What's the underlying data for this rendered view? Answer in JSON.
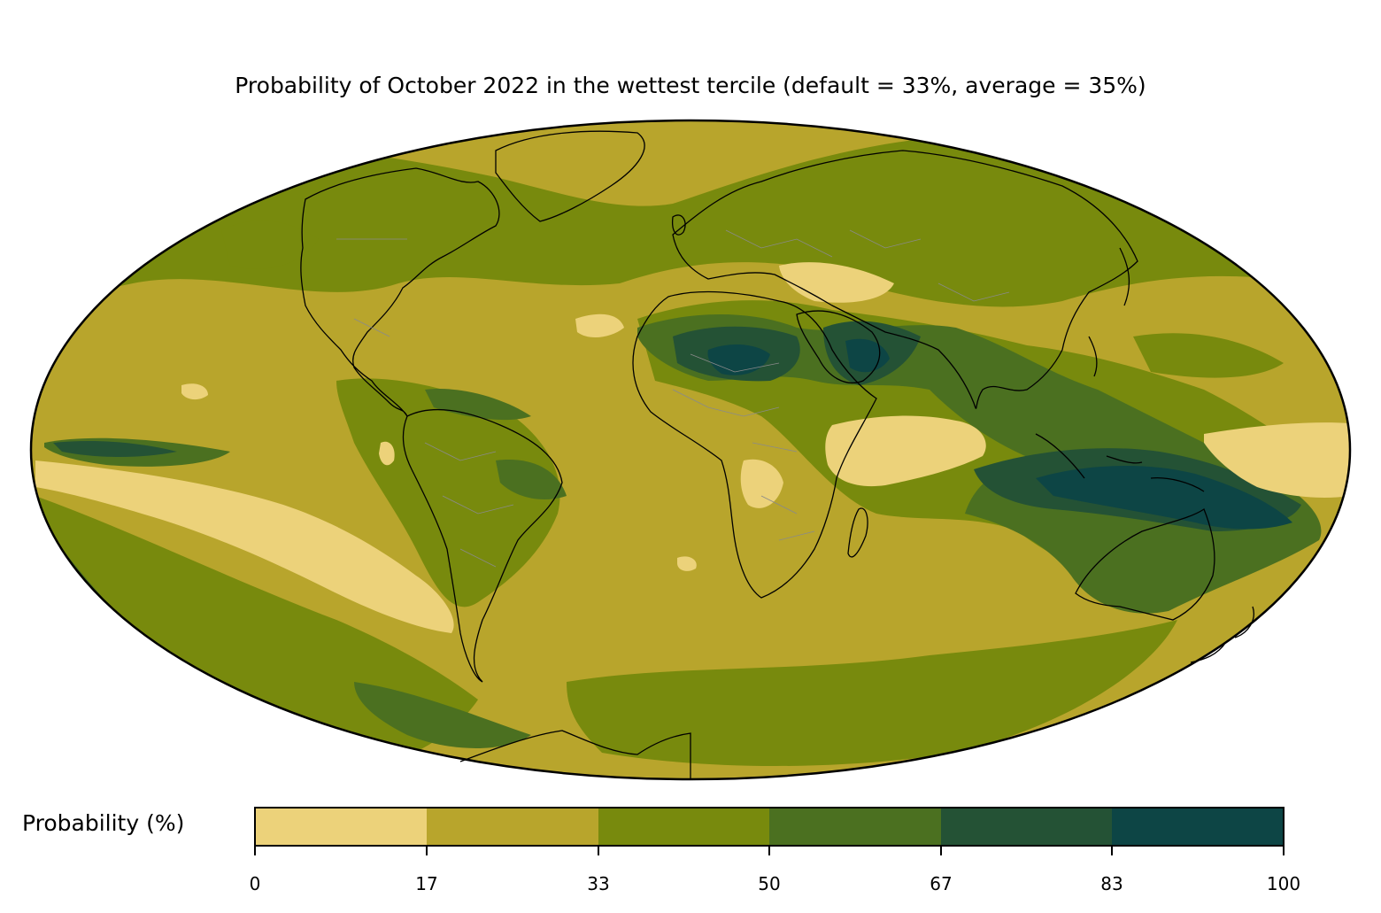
{
  "title": "Probability of October 2022 in the wettest tercile (default = 33%, average = 35%)",
  "colorbar": {
    "label": "Probability (%)",
    "ticks": [
      "0",
      "17",
      "33",
      "50",
      "67",
      "83",
      "100"
    ],
    "bins": [
      {
        "from": 0,
        "to": 17,
        "color": "#ecd27a"
      },
      {
        "from": 17,
        "to": 33,
        "color": "#b8a52c"
      },
      {
        "from": 33,
        "to": 50,
        "color": "#788a0d"
      },
      {
        "from": 50,
        "to": 67,
        "color": "#4b7020"
      },
      {
        "from": 67,
        "to": 83,
        "color": "#245235"
      },
      {
        "from": 83,
        "to": 100,
        "color": "#0d4545"
      }
    ]
  },
  "map": {
    "projection": "Mollweide",
    "coastline_color": "#000000",
    "border_color": "#8a8a8a"
  }
}
